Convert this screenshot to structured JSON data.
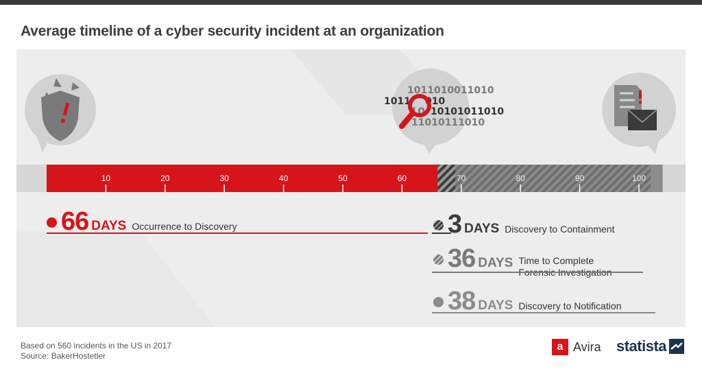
{
  "title": "Average timeline of a cyber security incident at an organization",
  "colors": {
    "accent": "#d7141a",
    "dark_gray": "#3a3a3a",
    "mid_gray": "#8c8c8c",
    "panel": "#ededed",
    "track": "#d7d7d7"
  },
  "icons": [
    "broken-shield-alert-icon",
    "binary-magnifier-icon",
    "document-alert-envelope-icon"
  ],
  "binary_text": [
    "1011010011010",
    "1011",
    "010",
    "10",
    "10101011010",
    "11010111010"
  ],
  "chart_data": {
    "type": "bar",
    "orientation": "horizontal",
    "xlim": [
      0,
      100
    ],
    "ticks": [
      10,
      20,
      30,
      40,
      50,
      60,
      70,
      80,
      90,
      100
    ],
    "series": [
      {
        "name": "Occurrence to Discovery",
        "value": 66,
        "style": "solid-red"
      },
      {
        "name": "Discovery to Containment",
        "value": 3,
        "style": "dark-hatch"
      },
      {
        "name": "Time to Complete Forensic Investigation",
        "value": 36,
        "style": "light-hatch"
      },
      {
        "name": "Discovery to Notification",
        "value": 38,
        "style": "gray"
      }
    ]
  },
  "stats": [
    {
      "number": "66",
      "unit": "DAYS",
      "desc": "Occurrence to Discovery"
    },
    {
      "number": "3",
      "unit": "DAYS",
      "desc": "Discovery to Containment"
    },
    {
      "number": "36",
      "unit": "DAYS",
      "desc_line1": "Time to Complete",
      "desc_line2": "Forensic Investigation"
    },
    {
      "number": "38",
      "unit": "DAYS",
      "desc": "Discovery to Notification"
    }
  ],
  "footer": {
    "note": "Based on 560 incidents in the US in 2017",
    "source": "Source: BakerHostetler"
  },
  "brands": {
    "avira": "Avira",
    "statista": "statista"
  }
}
